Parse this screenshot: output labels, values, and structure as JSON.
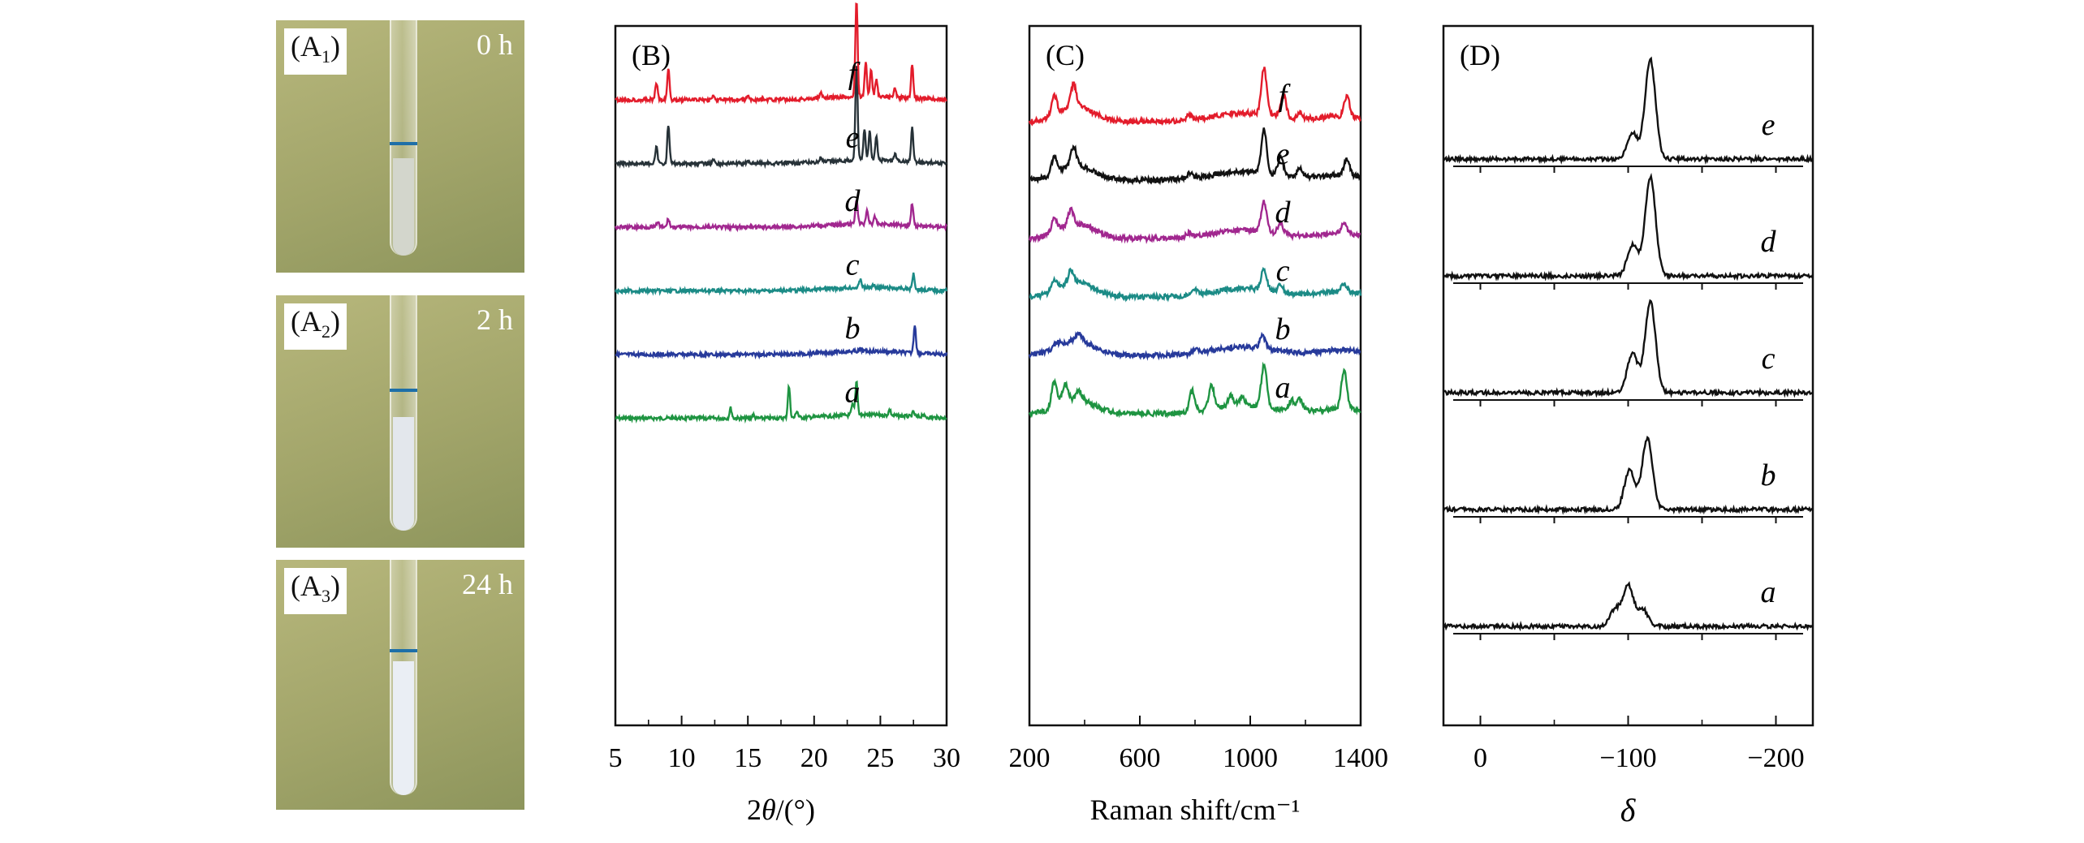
{
  "photos": [
    {
      "label_main": "(A",
      "label_sub": "1",
      "label_close": ")",
      "time": "0 h",
      "gel": "#d3d6cc"
    },
    {
      "label_main": "(A",
      "label_sub": "2",
      "label_close": ")",
      "time": "2 h",
      "gel": "#e3e7ec"
    },
    {
      "label_main": "(A",
      "label_sub": "3",
      "label_close": ")",
      "time": "24 h",
      "gel": "#eaeef4"
    }
  ],
  "chart_data": [
    {
      "panel": "(B)",
      "type": "line",
      "title": "",
      "xlabel": "2θ/(°)",
      "xlim": [
        5,
        30
      ],
      "xticks": [
        "5",
        "10",
        "15",
        "20",
        "25",
        "30"
      ],
      "series": [
        {
          "name": "a",
          "color": "#1e9441",
          "peaks": [
            [
              13.7,
              0.18
            ],
            [
              15.4,
              0.06
            ],
            [
              18.1,
              0.55
            ],
            [
              18.7,
              0.12
            ],
            [
              22.9,
              0.18
            ],
            [
              23.2,
              0.6
            ],
            [
              25.7,
              0.1
            ],
            [
              27.5,
              0.08
            ],
            [
              28.2,
              0.05
            ]
          ]
        },
        {
          "name": "b",
          "color": "#273a9b",
          "peaks": [
            [
              23.5,
              0.03
            ],
            [
              27.6,
              0.5
            ]
          ]
        },
        {
          "name": "c",
          "color": "#1b8b86",
          "peaks": [
            [
              23.5,
              0.15
            ],
            [
              24.5,
              0.05
            ],
            [
              27.5,
              0.28
            ]
          ]
        },
        {
          "name": "d",
          "color": "#a1278f",
          "peaks": [
            [
              8.2,
              0.1
            ],
            [
              9.0,
              0.15
            ],
            [
              23.2,
              0.45
            ],
            [
              24.0,
              0.25
            ],
            [
              24.6,
              0.12
            ],
            [
              27.4,
              0.4
            ]
          ]
        },
        {
          "name": "e",
          "color": "#273238",
          "peaks": [
            [
              8.1,
              0.28
            ],
            [
              9.0,
              0.68
            ],
            [
              12.4,
              0.08
            ],
            [
              15.0,
              0.06
            ],
            [
              20.5,
              0.07
            ],
            [
              23.2,
              1.7
            ],
            [
              23.8,
              0.55
            ],
            [
              24.2,
              0.5
            ],
            [
              24.7,
              0.4
            ],
            [
              26.1,
              0.12
            ],
            [
              27.4,
              0.6
            ]
          ]
        },
        {
          "name": "f",
          "color": "#e31c2b",
          "peaks": [
            [
              8.1,
              0.3
            ],
            [
              9.0,
              0.55
            ],
            [
              12.4,
              0.07
            ],
            [
              15.0,
              0.06
            ],
            [
              20.5,
              0.1
            ],
            [
              23.2,
              1.7
            ],
            [
              23.9,
              0.6
            ],
            [
              24.3,
              0.45
            ],
            [
              24.7,
              0.3
            ],
            [
              26.1,
              0.15
            ],
            [
              27.4,
              0.58
            ]
          ]
        }
      ]
    },
    {
      "panel": "(C)",
      "type": "line",
      "title": "",
      "xlabel": "Raman shift/cm⁻¹",
      "xlim": [
        200,
        1400
      ],
      "xticks": [
        "200",
        "600",
        "1000",
        "1400"
      ],
      "series": [
        {
          "name": "a",
          "color": "#1e9441",
          "peaks": [
            [
              290,
              0.6
            ],
            [
              330,
              0.45
            ],
            [
              380,
              0.2
            ],
            [
              790,
              0.5
            ],
            [
              860,
              0.55
            ],
            [
              930,
              0.25
            ],
            [
              970,
              0.2
            ],
            [
              1050,
              1.0
            ],
            [
              1150,
              0.25
            ],
            [
              1180,
              0.3
            ],
            [
              1340,
              0.9
            ]
          ]
        },
        {
          "name": "b",
          "color": "#273a9b",
          "peaks": [
            [
              300,
              0.12
            ],
            [
              380,
              0.18
            ],
            [
              800,
              0.08
            ],
            [
              1045,
              0.3
            ]
          ]
        },
        {
          "name": "c",
          "color": "#1b8b86",
          "peaks": [
            [
              290,
              0.25
            ],
            [
              350,
              0.3
            ],
            [
              800,
              0.12
            ],
            [
              1050,
              0.5
            ],
            [
              1110,
              0.2
            ],
            [
              1340,
              0.18
            ]
          ]
        },
        {
          "name": "d",
          "color": "#a1278f",
          "peaks": [
            [
              290,
              0.3
            ],
            [
              350,
              0.35
            ],
            [
              780,
              0.1
            ],
            [
              1050,
              0.7
            ],
            [
              1110,
              0.25
            ],
            [
              1340,
              0.25
            ]
          ]
        },
        {
          "name": "e",
          "color": "#121212",
          "peaks": [
            [
              290,
              0.4
            ],
            [
              360,
              0.45
            ],
            [
              780,
              0.12
            ],
            [
              1050,
              1.05
            ],
            [
              1110,
              0.45
            ],
            [
              1180,
              0.2
            ],
            [
              1350,
              0.4
            ]
          ]
        },
        {
          "name": "f",
          "color": "#e31c2b",
          "peaks": [
            [
              290,
              0.45
            ],
            [
              360,
              0.55
            ],
            [
              780,
              0.12
            ],
            [
              1050,
              1.1
            ],
            [
              1120,
              0.55
            ],
            [
              1180,
              0.15
            ],
            [
              1350,
              0.5
            ]
          ]
        }
      ]
    },
    {
      "panel": "(D)",
      "type": "line",
      "title": "",
      "xlabel": "δ",
      "xlim": [
        25,
        -225
      ],
      "xticks": [
        "0",
        "−100",
        "−200"
      ],
      "series": [
        {
          "name": "a",
          "color": "#111111",
          "peaks": [
            [
              -91,
              0.3
            ],
            [
              -100,
              0.72
            ],
            [
              -110,
              0.3
            ]
          ]
        },
        {
          "name": "b",
          "color": "#111111",
          "peaks": [
            [
              -101,
              0.7
            ],
            [
              -113,
              1.25
            ]
          ]
        },
        {
          "name": "c",
          "color": "#111111",
          "peaks": [
            [
              -103,
              0.7
            ],
            [
              -115,
              1.6
            ]
          ]
        },
        {
          "name": "d",
          "color": "#111111",
          "peaks": [
            [
              -103,
              0.55
            ],
            [
              -115,
              1.75
            ]
          ]
        },
        {
          "name": "e",
          "color": "#111111",
          "peaks": [
            [
              -103,
              0.45
            ],
            [
              -115,
              1.75
            ]
          ]
        }
      ]
    }
  ]
}
